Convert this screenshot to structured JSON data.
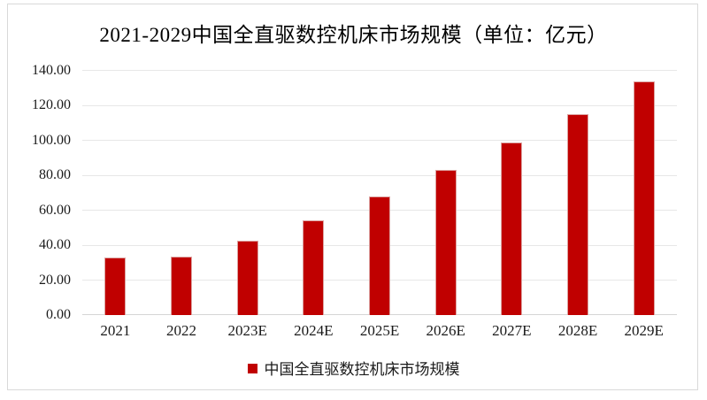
{
  "title": "2021-2029中国全直驱数控机床市场规模（单位：亿元）",
  "legend": {
    "label": "中国全直驱数控机床市场规模",
    "marker_color": "#c00000"
  },
  "colors": {
    "bar": "#c00000",
    "bar_edge": "#dca3a1",
    "gridline": "#e7e7e7",
    "axis_line": "#d6d6d6",
    "frame_border": "#d9d9d9",
    "text": "#000000",
    "background": "#ffffff"
  },
  "chart_data": {
    "type": "bar",
    "title": "2021-2029中国全直驱数控机床市场规模（单位：亿元）",
    "unit": "亿元",
    "categories": [
      "2021",
      "2022",
      "2023E",
      "2024E",
      "2025E",
      "2026E",
      "2027E",
      "2028E",
      "2029E"
    ],
    "values": [
      33.0,
      33.5,
      42.3,
      54.2,
      67.7,
      82.9,
      98.7,
      114.7,
      133.5
    ],
    "series": [
      {
        "name": "中国全直驱数控机床市场规模",
        "values": [
          33.0,
          33.5,
          42.3,
          54.2,
          67.7,
          82.9,
          98.7,
          114.7,
          133.5
        ]
      }
    ],
    "xlabel": "",
    "ylabel": "",
    "ylim": [
      0,
      140
    ],
    "y_tick_step": 20,
    "y_ticks": [
      "140.00",
      "120.00",
      "100.00",
      "80.00",
      "60.00",
      "40.00",
      "20.00",
      "0.00"
    ],
    "grid": "horizontal",
    "legend_position": "bottom"
  }
}
